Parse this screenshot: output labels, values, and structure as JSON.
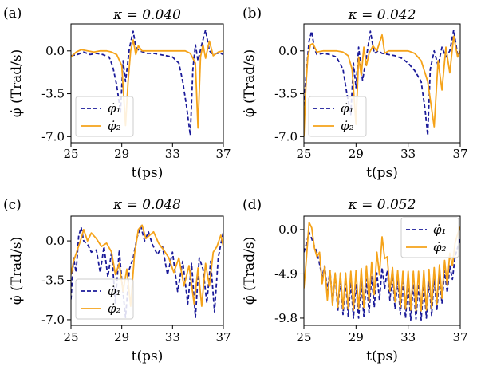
{
  "colors": {
    "phi1": "#1a1a99",
    "phi2": "#f5a31a"
  },
  "chart_data": [
    {
      "type": "line",
      "panel_label": "(a)",
      "title": "κ = 0.040",
      "xlabel": "t(ps)",
      "ylabel": "φ̇ (Trad/s)",
      "xlim": [
        25,
        37
      ],
      "ylim": [
        -7.5,
        2.2
      ],
      "xticks": [
        25,
        29,
        33,
        37
      ],
      "yticks": [
        0.0,
        -3.5,
        -7.0
      ],
      "ytick_labels": [
        "0.0",
        "-3.5",
        "-7.0"
      ],
      "legend": {
        "position": "lower-left",
        "labels": [
          "φ̇₁",
          "φ̇₂"
        ]
      },
      "series": [
        {
          "name": "φ̇₁",
          "style": "dashed",
          "x": [
            25,
            25.5,
            26,
            26.5,
            27,
            27.5,
            28,
            28.3,
            28.6,
            28.9,
            29.1,
            29.3,
            29.6,
            29.9,
            30.1,
            30.4,
            30.7,
            31.0,
            31.5,
            32,
            32.5,
            33,
            33.5,
            33.8,
            34.1,
            34.4,
            34.6,
            34.8,
            35.0,
            35.3,
            35.6,
            35.9,
            36.2,
            36.5,
            36.8,
            37
          ],
          "y": [
            -0.4,
            -0.3,
            -0.1,
            -0.3,
            -0.2,
            -0.3,
            -0.5,
            -1.3,
            -2.8,
            -5.0,
            -0.8,
            -2.5,
            0.2,
            1.6,
            0.3,
            0.0,
            -0.1,
            -0.2,
            -0.2,
            -0.3,
            -0.4,
            -0.5,
            -1.0,
            -2.5,
            -4.5,
            -6.9,
            -1.5,
            0.5,
            -0.8,
            0.5,
            1.7,
            0.0,
            -0.3,
            -0.2,
            -0.2,
            -0.3
          ]
        },
        {
          "name": "φ̇₂",
          "style": "solid",
          "x": [
            25,
            25.4,
            25.8,
            26.3,
            26.8,
            27.3,
            27.8,
            28.2,
            28.6,
            29.0,
            29.3,
            29.5,
            29.7,
            29.9,
            30.1,
            30.3,
            30.6,
            31.0,
            31.5,
            32,
            32.5,
            33,
            33.5,
            34,
            34.4,
            34.8,
            35.0,
            35.2,
            35.4,
            35.6,
            35.9,
            36.2,
            36.6,
            37
          ],
          "y": [
            -0.5,
            -0.1,
            0.1,
            0.0,
            -0.1,
            0.0,
            0.0,
            -0.1,
            -0.3,
            -1.2,
            -6.1,
            -2.5,
            0.0,
            0.9,
            -0.3,
            0.4,
            0.0,
            0.0,
            0.0,
            0.0,
            0.0,
            0.0,
            0.0,
            0.0,
            -0.2,
            -1.0,
            -6.3,
            -0.5,
            0.5,
            -0.6,
            0.8,
            -0.4,
            -0.1,
            0.0
          ]
        }
      ]
    },
    {
      "type": "line",
      "panel_label": "(b)",
      "title": "κ = 0.042",
      "xlabel": "t(ps)",
      "ylabel": "φ̇ (Trad/s)",
      "xlim": [
        25,
        37
      ],
      "ylim": [
        -7.5,
        2.2
      ],
      "xticks": [
        25,
        29,
        33,
        37
      ],
      "yticks": [
        0.0,
        -3.5,
        -7.0
      ],
      "ytick_labels": [
        "0.0",
        "-3.5",
        "-7.0"
      ],
      "legend": {
        "position": "lower-left",
        "labels": [
          "φ̇₁",
          "φ̇₂"
        ]
      },
      "series": [
        {
          "name": "φ̇₁",
          "style": "dashed",
          "x": [
            25,
            25.2,
            25.4,
            25.6,
            25.8,
            26.0,
            26.5,
            27,
            27.5,
            28,
            28.3,
            28.6,
            28.8,
            29.0,
            29.2,
            29.5,
            29.8,
            30.1,
            30.4,
            30.7,
            31.0,
            31.5,
            32,
            32.5,
            33,
            33.5,
            34.0,
            34.3,
            34.5,
            34.7,
            35.0,
            35.3,
            35.6,
            35.9,
            36.2,
            36.5,
            36.8,
            37
          ],
          "y": [
            -4.5,
            -1.5,
            0.8,
            1.6,
            0.2,
            -0.3,
            -0.2,
            -0.3,
            -0.5,
            -1.5,
            -3.5,
            -5.2,
            -1.0,
            -3.0,
            0.3,
            -2.4,
            -0.5,
            1.6,
            -0.2,
            0.0,
            -0.2,
            -0.3,
            -0.4,
            -0.6,
            -1.0,
            -1.6,
            -2.5,
            -4.8,
            -6.9,
            -1.5,
            0.0,
            -1.2,
            0.3,
            -0.5,
            0.0,
            1.7,
            -0.3,
            -0.2
          ]
        },
        {
          "name": "φ̇₂",
          "style": "solid",
          "x": [
            25,
            25.15,
            25.3,
            25.5,
            25.7,
            26.0,
            26.5,
            27,
            27.5,
            28,
            28.4,
            28.7,
            29.0,
            29.2,
            29.4,
            29.6,
            29.8,
            30.0,
            30.3,
            30.6,
            31.0,
            31.2,
            31.5,
            32,
            32.5,
            33,
            33.5,
            34,
            34.5,
            35.0,
            35.3,
            35.6,
            35.9,
            36.2,
            36.5,
            36.8,
            37
          ],
          "y": [
            -7.0,
            -3.0,
            -0.5,
            0.5,
            0.6,
            -0.1,
            0.0,
            0.0,
            0.0,
            -0.1,
            -0.4,
            -1.5,
            -6.0,
            -0.5,
            -2.0,
            0.3,
            -1.2,
            -0.2,
            0.4,
            0.0,
            1.3,
            -0.2,
            0.0,
            0.0,
            0.0,
            0.0,
            -0.2,
            -0.8,
            -2.5,
            -6.2,
            -0.8,
            -3.2,
            0.3,
            -1.8,
            1.2,
            -0.5,
            0.0
          ]
        }
      ]
    },
    {
      "type": "line",
      "panel_label": "(c)",
      "title": "κ = 0.048",
      "xlabel": "t(ps)",
      "ylabel": "φ̇ (Trad/s)",
      "xlim": [
        25,
        37
      ],
      "ylim": [
        -7.5,
        2.2
      ],
      "xticks": [
        25,
        29,
        33,
        37
      ],
      "yticks": [
        0.0,
        -3.5,
        -7.0
      ],
      "ytick_labels": [
        "0.0",
        "-3.5",
        "-7.0"
      ],
      "legend": {
        "position": "lower-left",
        "labels": [
          "φ̇₁",
          "φ̇₂"
        ]
      },
      "series": [
        {
          "name": "φ̇₁",
          "style": "dashed",
          "x": [
            25,
            25.2,
            25.4,
            25.6,
            25.8,
            26.0,
            26.3,
            26.6,
            27,
            27.3,
            27.6,
            27.9,
            28.2,
            28.5,
            28.8,
            29.0,
            29.3,
            29.6,
            29.9,
            30.2,
            30.5,
            30.8,
            31.1,
            31.4,
            31.8,
            32.2,
            32.6,
            33.0,
            33.4,
            33.8,
            34.2,
            34.5,
            34.8,
            35.1,
            35.4,
            35.7,
            36.0,
            36.3,
            36.6,
            36.8,
            37
          ],
          "y": [
            -5.2,
            -1.5,
            -2.8,
            0.4,
            1.2,
            0.0,
            -0.3,
            -1.0,
            -0.8,
            -2.8,
            -0.5,
            -3.2,
            -1.0,
            -5.5,
            -0.8,
            -3.5,
            -6.8,
            -2.5,
            -1.5,
            0.3,
            1.3,
            0.0,
            0.8,
            -0.3,
            -1.2,
            -0.5,
            -3.0,
            -1.0,
            -4.5,
            -1.8,
            -5.6,
            -2.0,
            -6.8,
            -1.5,
            -2.5,
            -5.5,
            -1.8,
            -6.3,
            -1.5,
            -0.3,
            0.8
          ]
        },
        {
          "name": "φ̇₂",
          "style": "solid",
          "x": [
            25,
            25.2,
            25.5,
            25.8,
            26.0,
            26.3,
            26.6,
            27.0,
            27.4,
            27.8,
            28.2,
            28.5,
            28.8,
            29.1,
            29.4,
            29.7,
            30.0,
            30.3,
            30.6,
            30.9,
            31.2,
            31.5,
            31.9,
            32.3,
            32.7,
            33.1,
            33.5,
            33.9,
            34.3,
            34.7,
            35.0,
            35.3,
            35.6,
            35.9,
            36.2,
            36.5,
            36.8,
            37
          ],
          "y": [
            -3.0,
            -1.8,
            -0.8,
            0.2,
            1.0,
            0.0,
            0.7,
            0.2,
            -0.5,
            -0.2,
            -1.0,
            -3.0,
            -2.0,
            -4.5,
            -2.5,
            -5.8,
            -1.2,
            1.0,
            1.4,
            0.2,
            0.5,
            0.8,
            -0.2,
            -0.8,
            -1.5,
            -2.8,
            -1.5,
            -4.0,
            -2.2,
            -5.6,
            -2.4,
            -5.8,
            -2.0,
            -4.0,
            -1.0,
            -0.5,
            0.5,
            -0.5
          ]
        }
      ]
    },
    {
      "type": "line",
      "panel_label": "(d)",
      "title": "κ = 0.052",
      "xlabel": "t(ps)",
      "ylabel": "φ̇ (Trad/s)",
      "xlim": [
        25,
        37
      ],
      "ylim": [
        -10.6,
        1.5
      ],
      "xticks": [
        25,
        29,
        33,
        37
      ],
      "yticks": [
        0.0,
        -4.9,
        -9.8
      ],
      "ytick_labels": [
        "0.0",
        "-4.9",
        "-9.8"
      ],
      "legend": {
        "position": "upper-right",
        "labels": [
          "φ̇₁",
          "φ̇₂"
        ]
      },
      "series": [
        {
          "name": "φ̇₁",
          "style": "dashed",
          "x": [
            25,
            25.2,
            25.4,
            25.6,
            25.8,
            26.0,
            26.2,
            26.4,
            26.6,
            26.8,
            27.0,
            27.2,
            27.4,
            27.6,
            27.8,
            28.0,
            28.2,
            28.4,
            28.6,
            28.8,
            29.0,
            29.2,
            29.4,
            29.6,
            29.8,
            30.0,
            30.2,
            30.4,
            30.6,
            30.8,
            31.0,
            31.2,
            31.4,
            31.6,
            31.8,
            32.0,
            32.2,
            32.4,
            32.6,
            32.8,
            33.0,
            33.2,
            33.4,
            33.6,
            33.8,
            34.0,
            34.2,
            34.4,
            34.6,
            34.8,
            35.0,
            35.2,
            35.4,
            35.6,
            35.8,
            36.0,
            36.2,
            36.4,
            36.6,
            36.8,
            37
          ],
          "y": [
            -2.5,
            -1.5,
            -0.3,
            -1.0,
            -1.8,
            -2.5,
            -3.8,
            -5.2,
            -4.0,
            -6.8,
            -4.5,
            -8.2,
            -5.0,
            -9.0,
            -5.5,
            -9.4,
            -5.6,
            -9.6,
            -5.8,
            -9.8,
            -6.0,
            -9.8,
            -5.8,
            -9.6,
            -5.5,
            -9.2,
            -5.2,
            -8.6,
            -4.8,
            -7.8,
            -4.2,
            -6.5,
            -4.5,
            -7.8,
            -5.0,
            -8.8,
            -5.5,
            -9.4,
            -5.8,
            -9.8,
            -6.0,
            -10.0,
            -6.0,
            -9.9,
            -6.0,
            -10.0,
            -5.8,
            -9.8,
            -5.6,
            -9.5,
            -5.3,
            -9.0,
            -5.0,
            -8.2,
            -4.5,
            -7.0,
            -4.0,
            -5.5,
            -3.0,
            -2.0,
            -1.0
          ]
        },
        {
          "name": "φ̇₂",
          "style": "solid",
          "x": [
            25,
            25.2,
            25.4,
            25.6,
            25.8,
            26.0,
            26.2,
            26.4,
            26.6,
            26.8,
            27.0,
            27.2,
            27.4,
            27.6,
            27.8,
            28.0,
            28.2,
            28.4,
            28.6,
            28.8,
            29.0,
            29.2,
            29.4,
            29.6,
            29.8,
            30.0,
            30.2,
            30.4,
            30.6,
            30.8,
            31.0,
            31.2,
            31.4,
            31.6,
            31.8,
            32.0,
            32.2,
            32.4,
            32.6,
            32.8,
            33.0,
            33.2,
            33.4,
            33.6,
            33.8,
            34.0,
            34.2,
            34.4,
            34.6,
            34.8,
            35.0,
            35.2,
            35.4,
            35.6,
            35.8,
            36.0,
            36.2,
            36.4,
            36.6,
            36.8,
            37
          ],
          "y": [
            -6.5,
            -3.0,
            0.8,
            0.2,
            -2.0,
            -3.0,
            -2.5,
            -6.0,
            -4.0,
            -7.8,
            -4.5,
            -8.4,
            -4.8,
            -8.6,
            -4.8,
            -8.8,
            -4.8,
            -8.8,
            -4.6,
            -8.9,
            -4.5,
            -8.8,
            -4.3,
            -8.6,
            -4.0,
            -8.0,
            -3.6,
            -7.2,
            -2.5,
            -5.0,
            -0.8,
            -3.2,
            -3.0,
            -6.8,
            -4.2,
            -8.0,
            -4.5,
            -8.6,
            -4.6,
            -8.8,
            -4.6,
            -8.9,
            -4.6,
            -9.0,
            -4.6,
            -9.0,
            -4.5,
            -8.9,
            -4.4,
            -8.7,
            -4.2,
            -8.3,
            -3.9,
            -7.6,
            -3.4,
            -6.2,
            -2.6,
            -4.0,
            -1.5,
            -0.5,
            0.3
          ]
        }
      ]
    }
  ]
}
